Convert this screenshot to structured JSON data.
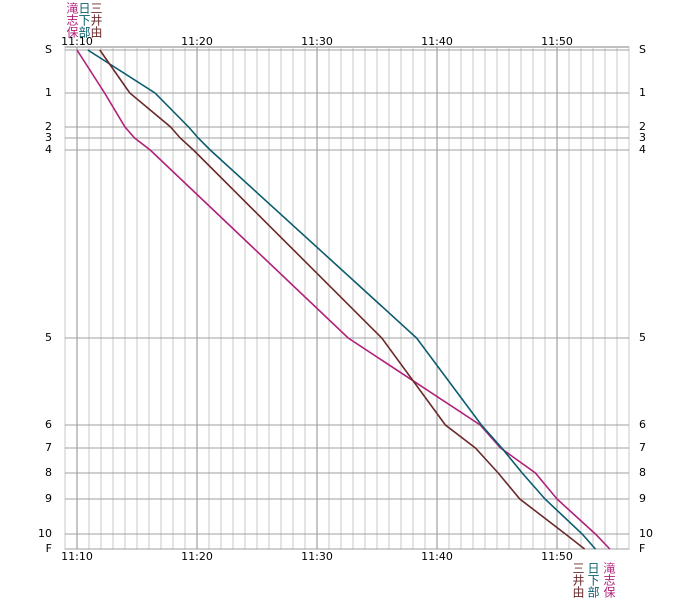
{
  "chart_data": {
    "type": "line",
    "y_inverted": true,
    "xlim": [
      9,
      56
    ],
    "xticks": [
      {
        "value": 10,
        "label": "11:10"
      },
      {
        "value": 20,
        "label": "11:20"
      },
      {
        "value": 30,
        "label": "11:30"
      },
      {
        "value": 40,
        "label": "11:40"
      },
      {
        "value": 50,
        "label": "11:50"
      }
    ],
    "minor_xticks": [
      9,
      11,
      12,
      13,
      14,
      15,
      16,
      17,
      18,
      19,
      21,
      22,
      23,
      24,
      25,
      26,
      27,
      28,
      29,
      31,
      32,
      33,
      34,
      35,
      36,
      37,
      38,
      39,
      41,
      42,
      43,
      44,
      45,
      46,
      47,
      48,
      49,
      51,
      52,
      53,
      54,
      55,
      56
    ],
    "ylim": [
      -3,
      499
    ],
    "yticks": [
      {
        "value": 0,
        "label": "S"
      },
      43,
      77,
      88,
      100,
      288,
      375,
      398,
      423,
      449,
      484,
      {
        "value": 499,
        "label": "F"
      }
    ],
    "ytick_labels": [
      "S",
      "1",
      "2",
      "3",
      "4",
      "5",
      "6",
      "7",
      "8",
      "9",
      "10",
      "F"
    ],
    "series": [
      {
        "name": "滝志保",
        "color": "#b0207a",
        "x": [
          10.0,
          12.3,
          14.0,
          14.8,
          16.1,
          32.6,
          43.6,
          45.3,
          48.2,
          50.0,
          53.2,
          54.4
        ],
        "values": [
          0,
          43,
          77,
          88,
          100,
          288,
          375,
          398,
          423,
          449,
          484,
          499
        ]
      },
      {
        "name": "日下部",
        "color": "#0b5c6e",
        "x": [
          10.9,
          16.5,
          19.3,
          20.1,
          21.1,
          38.3,
          43.7,
          45.4,
          47.1,
          49.0,
          52.1,
          53.2
        ],
        "values": [
          0,
          43,
          77,
          88,
          100,
          288,
          375,
          398,
          423,
          449,
          484,
          499
        ]
      },
      {
        "name": "三井由",
        "color": "#6b2a2a",
        "x": [
          11.9,
          14.4,
          17.8,
          18.6,
          19.7,
          35.4,
          40.7,
          43.2,
          45.1,
          46.9,
          50.7,
          52.3
        ],
        "values": [
          0,
          43,
          77,
          88,
          100,
          288,
          375,
          398,
          423,
          449,
          484,
          499
        ]
      }
    ]
  }
}
